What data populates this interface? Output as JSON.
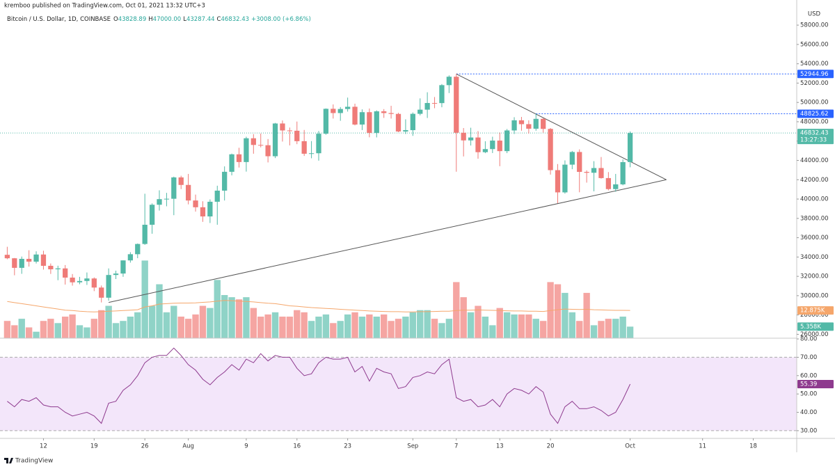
{
  "header": {
    "publisher": "kremboo published on TradingView.com, Oct 01, 2021 13:32 UTC+3",
    "symbol": "Bitcoin / U.S. Dollar, 1D, COINBASE",
    "ohlc": [
      {
        "key": "O",
        "text": "43828.89"
      },
      {
        "key": "H",
        "text": "47000.00"
      },
      {
        "key": "L",
        "text": "43287.44"
      },
      {
        "key": "C",
        "text": "46832.43"
      }
    ],
    "change": "+3008.00 (+6.86%)"
  },
  "footer": {
    "brand": "TradingView"
  },
  "chart_data": {
    "type": "candlestick",
    "y_label": "USD",
    "up_color": "#53b9a7",
    "down_color": "#ef7b78",
    "x": [
      "2021-07-07",
      "2021-07-08",
      "2021-07-09",
      "2021-07-10",
      "2021-07-11",
      "2021-07-12",
      "2021-07-13",
      "2021-07-14",
      "2021-07-15",
      "2021-07-16",
      "2021-07-17",
      "2021-07-18",
      "2021-07-19",
      "2021-07-20",
      "2021-07-21",
      "2021-07-22",
      "2021-07-23",
      "2021-07-24",
      "2021-07-25",
      "2021-07-26",
      "2021-07-27",
      "2021-07-28",
      "2021-07-29",
      "2021-07-30",
      "2021-07-31",
      "2021-08-01",
      "2021-08-02",
      "2021-08-03",
      "2021-08-04",
      "2021-08-05",
      "2021-08-06",
      "2021-08-07",
      "2021-08-08",
      "2021-08-09",
      "2021-08-10",
      "2021-08-11",
      "2021-08-12",
      "2021-08-13",
      "2021-08-14",
      "2021-08-15",
      "2021-08-16",
      "2021-08-17",
      "2021-08-18",
      "2021-08-19",
      "2021-08-20",
      "2021-08-21",
      "2021-08-22",
      "2021-08-23",
      "2021-08-24",
      "2021-08-25",
      "2021-08-26",
      "2021-08-27",
      "2021-08-28",
      "2021-08-29",
      "2021-08-30",
      "2021-08-31",
      "2021-09-01",
      "2021-09-02",
      "2021-09-03",
      "2021-09-04",
      "2021-09-05",
      "2021-09-06",
      "2021-09-07",
      "2021-09-08",
      "2021-09-09",
      "2021-09-10",
      "2021-09-11",
      "2021-09-12",
      "2021-09-13",
      "2021-09-14",
      "2021-09-15",
      "2021-09-16",
      "2021-09-17",
      "2021-09-18",
      "2021-09-19",
      "2021-09-20",
      "2021-09-21",
      "2021-09-22",
      "2021-09-23",
      "2021-09-24",
      "2021-09-25",
      "2021-09-26",
      "2021-09-27",
      "2021-09-28",
      "2021-09-29",
      "2021-09-30",
      "2021-10-01"
    ],
    "open": [
      34230,
      33870,
      32880,
      33810,
      33520,
      34260,
      33090,
      32730,
      32820,
      31870,
      31380,
      31520,
      31780,
      30840,
      29790,
      32140,
      32290,
      33650,
      34290,
      35350,
      37340,
      39410,
      39990,
      40030,
      42240,
      41460,
      39850,
      39150,
      38200,
      39720,
      40870,
      42820,
      44630,
      43830,
      46290,
      45600,
      45570,
      44430,
      47820,
      47100,
      47070,
      45990,
      44690,
      44740,
      46760,
      49340,
      48900,
      49320,
      49550,
      47710,
      48990,
      46850,
      49080,
      48900,
      48810,
      46990,
      47130,
      48820,
      49250,
      49940,
      49930,
      51790,
      52660,
      46860,
      46070,
      46370,
      44850,
      45170,
      46050,
      44960,
      47100,
      48150,
      47750,
      47280,
      48300,
      47260,
      42990,
      40690,
      43560,
      44870,
      42810,
      42720,
      43210,
      42170,
      41030,
      41520,
      43828.89
    ],
    "high": [
      35060,
      33900,
      34050,
      34700,
      34590,
      34650,
      33330,
      33100,
      33170,
      32240,
      31950,
      32400,
      31890,
      31050,
      32820,
      32590,
      33650,
      34500,
      35400,
      40550,
      39550,
      40900,
      40640,
      42320,
      42410,
      42600,
      40460,
      39770,
      39960,
      41380,
      43380,
      44700,
      45310,
      46450,
      46720,
      46780,
      46210,
      47880,
      48130,
      47400,
      48020,
      47150,
      46000,
      47040,
      49380,
      49790,
      49520,
      50500,
      49870,
      49280,
      49370,
      49180,
      49310,
      49650,
      48920,
      48250,
      48960,
      50420,
      51050,
      50560,
      51900,
      52800,
      52944.96,
      47350,
      47380,
      47030,
      45980,
      46450,
      46880,
      47250,
      48470,
      48500,
      48150,
      48825.62,
      48370,
      47350,
      43620,
      44000,
      44980,
      45140,
      42970,
      43920,
      44350,
      42790,
      42600,
      44100,
      47000
    ],
    "low": [
      33770,
      32110,
      32260,
      33010,
      33330,
      32700,
      32250,
      31600,
      31150,
      31040,
      31180,
      31110,
      30470,
      29300,
      29480,
      31720,
      31950,
      33420,
      33880,
      35260,
      36410,
      38810,
      39250,
      38330,
      41030,
      39450,
      38700,
      37640,
      37520,
      37340,
      39850,
      42450,
      43260,
      42840,
      44690,
      45350,
      43790,
      44240,
      45950,
      45550,
      45680,
      44460,
      44220,
      43970,
      46660,
      48330,
      48100,
      49050,
      47620,
      47140,
      46390,
      46380,
      48400,
      48330,
      46920,
      46730,
      46540,
      48660,
      48390,
      49400,
      49500,
      50970,
      42830,
      44410,
      45540,
      44170,
      44750,
      44760,
      43400,
      44750,
      46730,
      47070,
      46780,
      47070,
      46870,
      42530,
      39570,
      40560,
      43090,
      40700,
      41700,
      40800,
      42110,
      40900,
      40760,
      41420,
      43287.44
    ],
    "close": [
      33870,
      32880,
      33810,
      33520,
      34260,
      33090,
      32730,
      32820,
      31870,
      31380,
      31520,
      31780,
      30840,
      29790,
      32140,
      32290,
      33650,
      34290,
      35350,
      37340,
      39410,
      39990,
      40030,
      42240,
      41460,
      39850,
      39150,
      38200,
      39720,
      40870,
      42820,
      44630,
      43830,
      46290,
      45600,
      45570,
      44430,
      47820,
      47100,
      47070,
      45990,
      44690,
      44740,
      46760,
      49340,
      48900,
      49320,
      49550,
      47710,
      48990,
      46850,
      49080,
      48900,
      48810,
      46990,
      47130,
      48820,
      49250,
      49940,
      49930,
      51790,
      52660,
      46860,
      46070,
      46370,
      44850,
      45170,
      46050,
      44960,
      47100,
      48150,
      47750,
      47280,
      48300,
      47260,
      42990,
      40690,
      43560,
      44870,
      42810,
      42720,
      43210,
      42170,
      41030,
      41520,
      43820,
      46832.43
    ],
    "countdown": "13:27:33",
    "xlim": [
      "2021-07-06",
      "2021-10-24"
    ],
    "xticks": [
      {
        "value": "2021-07-12",
        "label": "12"
      },
      {
        "value": "2021-07-19",
        "label": "19"
      },
      {
        "value": "2021-07-26",
        "label": "26"
      },
      {
        "value": "2021-08-01",
        "label": "Aug"
      },
      {
        "value": "2021-08-09",
        "label": "9"
      },
      {
        "value": "2021-08-16",
        "label": "16"
      },
      {
        "value": "2021-08-23",
        "label": "23"
      },
      {
        "value": "2021-09-01",
        "label": "Sep"
      },
      {
        "value": "2021-09-07",
        "label": "7"
      },
      {
        "value": "2021-09-13",
        "label": "13"
      },
      {
        "value": "2021-09-20",
        "label": "20"
      },
      {
        "value": "2021-10-01",
        "label": "Oct"
      },
      {
        "value": "2021-10-11",
        "label": "11"
      },
      {
        "value": "2021-10-18",
        "label": "18"
      }
    ],
    "ylim": [
      25600,
      60600
    ],
    "yticks": [
      {
        "value": 26000,
        "label": "26000.00"
      },
      {
        "value": 28000,
        "label": "28000.00"
      },
      {
        "value": 30000,
        "label": "30000.00"
      },
      {
        "value": 32000,
        "label": "32000.00"
      },
      {
        "value": 34000,
        "label": "34000.00"
      },
      {
        "value": 36000,
        "label": "36000.00"
      },
      {
        "value": 38000,
        "label": "38000.00"
      },
      {
        "value": 40000,
        "label": "40000.00"
      },
      {
        "value": 42000,
        "label": "42000.00"
      },
      {
        "value": 44000,
        "label": "44000.00"
      },
      {
        "value": 46000,
        "label": "46000.00"
      },
      {
        "value": 48000,
        "label": "48000.00"
      },
      {
        "value": 50000,
        "label": "50000.00"
      },
      {
        "value": 52000,
        "label": "52000.00"
      },
      {
        "value": 54000,
        "label": "54000.00"
      },
      {
        "value": 56000,
        "label": "56000.00"
      },
      {
        "value": 58000,
        "label": "58000.00"
      }
    ],
    "price_lines": [
      {
        "value": 52944.96,
        "from": "2021-09-07",
        "color": "#2962ff"
      },
      {
        "value": 48825.62,
        "from": "2021-09-18",
        "color": "#2962ff"
      }
    ],
    "trendlines": [
      {
        "points": [
          {
            "x": "2021-07-21",
            "y": 29300
          },
          {
            "x": "2021-10-06",
            "y": 42000
          }
        ]
      },
      {
        "points": [
          {
            "x": "2021-09-07",
            "y": 52944.96
          },
          {
            "x": "2021-10-06",
            "y": 42000
          }
        ]
      }
    ],
    "volume": {
      "up_color": "#8fd3c7",
      "down_color": "#f5a5a2",
      "ma_color": "#f5a66b",
      "values": [
        8,
        6,
        9,
        5,
        3,
        8,
        9,
        7,
        10,
        11,
        6,
        5,
        9,
        13,
        15,
        7,
        8,
        10,
        12,
        36,
        15,
        25,
        12,
        15,
        10,
        9,
        11,
        15,
        14,
        27,
        20,
        19,
        18,
        19,
        14,
        10,
        11,
        12,
        10,
        10,
        13,
        12,
        8,
        10,
        11,
        7,
        8,
        11,
        12,
        10,
        11,
        10,
        11,
        8,
        9,
        10,
        12,
        13,
        13,
        9,
        7,
        9,
        26,
        19,
        12,
        15,
        10,
        6,
        14,
        12,
        11,
        11,
        11,
        9,
        8,
        26,
        25,
        21,
        12,
        8,
        21,
        6,
        8,
        9,
        9,
        10,
        5.358
      ],
      "last_label": "5.358K",
      "ma": [
        17,
        16.5,
        16,
        15.5,
        15,
        14.5,
        14,
        13.5,
        13,
        12.8,
        12.5,
        12.3,
        12.2,
        12.3,
        12.5,
        12.6,
        12.8,
        13,
        13.2,
        14.5,
        15,
        15.8,
        16,
        16.2,
        16.3,
        16.3,
        16.4,
        16.6,
        16.8,
        17.2,
        17.5,
        17.4,
        17.2,
        17,
        16.8,
        16.5,
        16.2,
        16,
        15.5,
        15,
        14.8,
        14.5,
        14.2,
        14,
        13.8,
        13.6,
        13.4,
        13.2,
        13,
        12.8,
        12.6,
        12.5,
        12.4,
        12.3,
        12.3,
        12.2,
        12.2,
        12.3,
        12.3,
        12.4,
        12.5,
        12.5,
        12.8,
        13,
        13,
        13.1,
        13,
        12.9,
        12.8,
        12.7,
        12.6,
        12.6,
        12.5,
        12.5,
        12.4,
        12.8,
        13.2,
        13.5,
        13.4,
        13.3,
        13.4,
        13.2,
        13.1,
        13,
        12.9,
        12.9,
        12.875
      ],
      "ma_label": "12.875K"
    },
    "rsi": {
      "color": "#8e3a8e",
      "band_color": "#f3e6fa",
      "values": [
        46,
        43,
        47,
        46,
        48,
        44,
        43,
        43,
        40,
        38,
        39,
        40,
        38,
        34,
        45,
        46,
        52,
        55,
        60,
        67,
        70,
        71,
        71,
        75,
        71,
        66,
        63,
        58,
        55,
        59,
        62,
        66,
        63,
        69,
        67,
        72,
        68,
        71,
        70,
        70,
        64,
        60,
        61,
        67,
        70,
        69,
        69,
        70,
        62,
        65,
        57,
        64,
        62,
        61,
        53,
        54,
        59,
        60,
        62,
        61,
        66,
        69,
        48,
        46,
        47,
        43,
        44,
        47,
        43,
        50,
        53,
        52,
        50,
        54,
        51,
        39,
        34,
        43,
        46,
        42,
        42,
        43,
        41,
        38,
        40,
        47,
        55.39
      ],
      "band": [
        30,
        70
      ],
      "ylim": [
        25.8,
        80.4
      ],
      "yticks": [
        {
          "value": 30,
          "label": "30.00"
        },
        {
          "value": 40,
          "label": "40.00"
        },
        {
          "value": 50,
          "label": "50.00"
        },
        {
          "value": 60,
          "label": "60.00"
        },
        {
          "value": 70,
          "label": "70.00"
        },
        {
          "value": 80,
          "label": "80.00"
        }
      ]
    }
  }
}
